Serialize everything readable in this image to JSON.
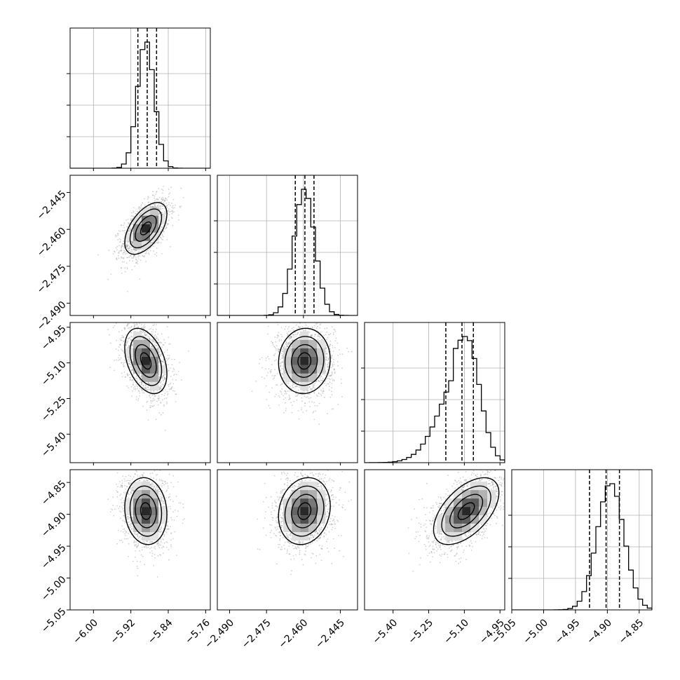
{
  "chart_data": {
    "type": "corner",
    "grid": true,
    "parameters": [
      {
        "range": [
          -6.05,
          -5.75
        ],
        "ticks": [
          "-6.00",
          "-5.92",
          "-5.84",
          "-5.76"
        ],
        "tick_values": [
          -6.0,
          -5.92,
          -5.84,
          -5.76
        ],
        "quantiles": [
          -5.905,
          -5.885,
          -5.865
        ],
        "peak": -5.888,
        "sigma": 0.018
      },
      {
        "range": [
          -2.495,
          -2.438
        ],
        "ticks": [
          "-2.490",
          "-2.475",
          "-2.460",
          "-2.445"
        ],
        "tick_values": [
          -2.49,
          -2.475,
          -2.46,
          -2.445
        ],
        "quantiles": [
          -2.4633,
          -2.4594,
          -2.4557
        ],
        "peak": -2.4596,
        "sigma": 0.0042
      },
      {
        "range": [
          -5.52,
          -4.93
        ],
        "ticks": [
          "-5.40",
          "-5.25",
          "-5.10",
          "-4.95"
        ],
        "tick_values": [
          -5.4,
          -5.25,
          -5.1,
          -4.95
        ],
        "quantiles": [
          -5.178,
          -5.11,
          -5.062
        ],
        "peak": -5.092,
        "sigma": 0.055
      },
      {
        "range": [
          -5.05,
          -4.83
        ],
        "ticks": [
          "-5.05",
          "-5.00",
          "-4.95",
          "-4.90",
          "-4.85"
        ],
        "tick_values": [
          -5.05,
          -5.0,
          -4.95,
          -4.9,
          -4.85
        ],
        "quantiles": [
          -4.928,
          -4.902,
          -4.881
        ],
        "peak": -4.895,
        "sigma": 0.021
      }
    ],
    "correlations": [
      {
        "i": 1,
        "j": 0,
        "rho": 0.55
      },
      {
        "i": 2,
        "j": 0,
        "rho": -0.4
      },
      {
        "i": 2,
        "j": 1,
        "rho": 0.05
      },
      {
        "i": 3,
        "j": 0,
        "rho": -0.1
      },
      {
        "i": 3,
        "j": 1,
        "rho": 0.15
      },
      {
        "i": 3,
        "j": 2,
        "rho": 0.55
      }
    ]
  }
}
